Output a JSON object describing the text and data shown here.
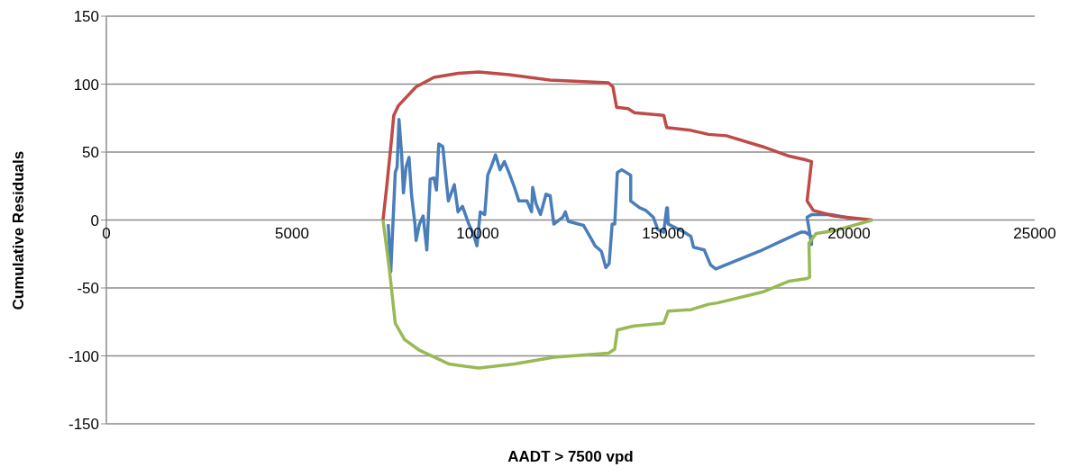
{
  "chart_data": {
    "type": "line",
    "xlabel": "AADT > 7500 vpd",
    "ylabel": "Cumulative Residuals",
    "xlim": [
      0,
      25000
    ],
    "xticks": [
      0,
      5000,
      10000,
      15000,
      20000,
      25000
    ],
    "ylim": [
      -150,
      150
    ],
    "yticks": [
      -150,
      -100,
      -50,
      0,
      50,
      100,
      150
    ],
    "grid": "y",
    "legend": false,
    "marker": "none",
    "line_style": "solid",
    "series": [
      {
        "color": "#4a7ebb",
        "x": [
          7590,
          7660,
          7710,
          7780,
          7830,
          7880,
          7950,
          8000,
          8070,
          8150,
          8220,
          8310,
          8340,
          8430,
          8530,
          8630,
          8720,
          8820,
          8890,
          8950,
          9060,
          9160,
          9210,
          9370,
          9470,
          9590,
          9760,
          9880,
          9980,
          10070,
          10190,
          10270,
          10360,
          10480,
          10600,
          10720,
          10840,
          10990,
          11110,
          11330,
          11450,
          11480,
          11570,
          11690,
          11840,
          11950,
          12050,
          12290,
          12360,
          12440,
          12850,
          13040,
          13160,
          13330,
          13450,
          13540,
          13620,
          13690,
          13760,
          13880,
          14120,
          14120,
          14360,
          14530,
          14730,
          14850,
          15010,
          15090,
          15110,
          15130,
          15500,
          15740,
          15810,
          16100,
          16270,
          16410,
          17590,
          18220,
          18700,
          18820,
          18990,
          18990,
          18870,
          18990,
          19520,
          20080
        ],
        "values": [
          -3,
          -38,
          -7,
          35,
          39,
          74,
          49,
          20,
          39,
          46,
          18,
          -3,
          -15,
          -3,
          3,
          -22,
          30,
          31,
          22,
          56,
          54,
          27,
          14,
          26,
          6,
          10,
          -3,
          -10,
          -19,
          6,
          4,
          33,
          39,
          48,
          37,
          43,
          35,
          24,
          14,
          14,
          6,
          24,
          12,
          4,
          19,
          18,
          -3,
          2,
          6,
          -1,
          -4,
          -13,
          -19,
          -23,
          -35,
          -32,
          -3,
          -3,
          35,
          37,
          33,
          14,
          9,
          7,
          2,
          -7,
          -9,
          9,
          9,
          -3,
          -8,
          -12,
          -20,
          -22,
          -33,
          -36,
          -23,
          -15,
          -9,
          -9,
          -12,
          -18,
          2,
          4,
          4,
          1
        ]
      },
      {
        "color": "#be4b48",
        "x": [
          7450,
          7540,
          7660,
          7740,
          7860,
          8030,
          8340,
          8820,
          9470,
          10030,
          10840,
          11950,
          13520,
          13640,
          13740,
          14050,
          14220,
          15010,
          15090,
          15740,
          16220,
          16700,
          17670,
          18390,
          18870,
          18990,
          18870,
          19040,
          19590,
          20630
        ],
        "values": [
          0,
          22,
          54,
          77,
          84,
          89,
          98,
          105,
          108,
          109,
          107,
          103,
          101,
          98,
          83,
          82,
          79,
          77,
          68,
          66,
          63,
          62,
          54,
          47,
          44,
          43,
          14,
          7,
          3,
          0
        ]
      },
      {
        "color": "#98b954",
        "x": [
          7450,
          7620,
          7780,
          8030,
          8440,
          9230,
          10030,
          10990,
          12050,
          13520,
          13690,
          13760,
          14050,
          14220,
          15010,
          15130,
          15740,
          16220,
          16460,
          17670,
          18390,
          18870,
          18940,
          18920,
          19110,
          19590,
          20630
        ],
        "values": [
          0,
          -36,
          -76,
          -88,
          -96,
          -106,
          -109,
          -106,
          -101,
          -98,
          -95,
          -81,
          -79,
          -78,
          -76,
          -67,
          -66,
          -62,
          -61,
          -53,
          -45,
          -43,
          -42,
          -17,
          -10,
          -8,
          0
        ]
      }
    ]
  }
}
